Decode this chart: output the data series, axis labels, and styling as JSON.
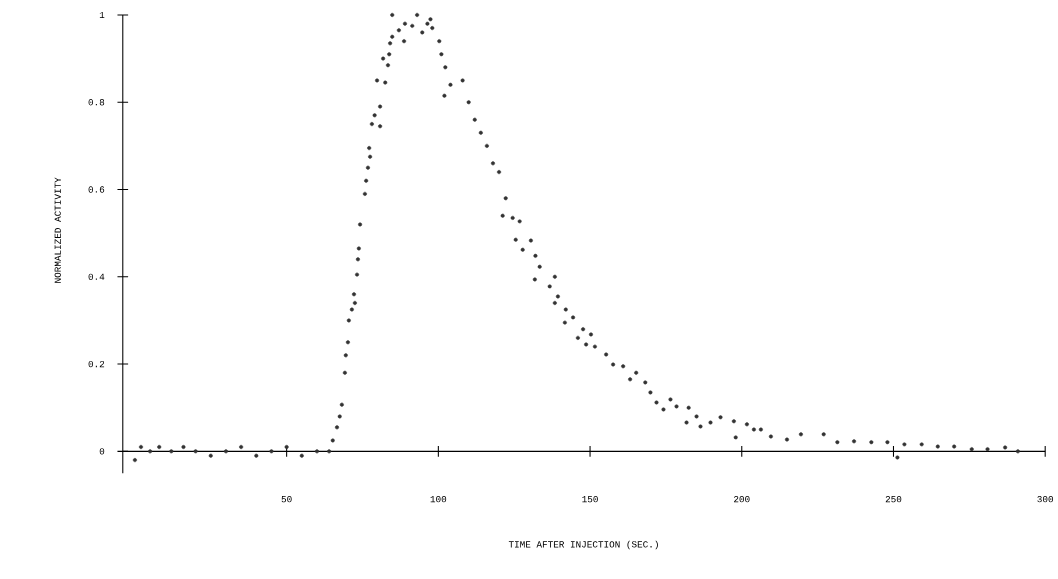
{
  "chart_data": {
    "type": "scatter",
    "xlabel": "TIME AFTER INJECTION (SEC.)",
    "ylabel": "NORMALIZED ACTIVITY",
    "marker": "circle",
    "color": "#333333",
    "x": [
      0,
      2,
      5,
      8,
      12,
      16,
      20,
      25,
      30,
      35,
      40,
      45,
      50,
      55,
      60,
      64,
      65.2,
      66.6,
      67.5,
      68.2,
      69.2,
      69.5,
      70.2,
      70.5,
      71.5,
      72.5,
      72.2,
      73.2,
      73.5,
      73.8,
      74.2,
      75.8,
      76.2,
      76.8,
      77.5,
      77.2,
      78.1,
      79,
      80.8,
      80.8,
      79.8,
      82.5,
      81.8,
      83.4,
      83.8,
      84.1,
      84.8,
      84.8,
      88.7,
      87,
      89,
      91.4,
      93,
      94.7,
      96.4,
      97.4,
      98,
      100.3,
      101,
      102.3,
      102,
      104,
      108,
      110,
      112,
      114,
      116,
      118,
      120,
      122.2,
      121.2,
      124.5,
      126.8,
      125.5,
      130.5,
      127.8,
      132,
      133.4,
      131.8,
      138.4,
      136.7,
      139.4,
      138.4,
      142,
      141.7,
      144.4,
      147.7,
      146,
      150.3,
      151.6,
      148.7,
      155.3,
      157.6,
      160.9,
      163.2,
      165.2,
      168.2,
      169.9,
      171.9,
      176.5,
      174.2,
      178.5,
      182.5,
      181.8,
      185.1,
      186.4,
      189.7,
      193,
      197.4,
      198,
      201.7,
      206.3,
      209.6,
      214.9,
      219.5,
      204,
      227,
      231.5,
      237,
      242.7,
      248,
      251.3,
      253.6,
      259.3,
      264.6,
      270,
      275.8,
      281,
      286.8,
      291
    ],
    "values": [
      -0.02,
      0.01,
      0.0,
      0.01,
      0.0,
      0.01,
      0.0,
      -0.01,
      0.0,
      0.01,
      -0.01,
      0.0,
      0.01,
      -0.01,
      0.0,
      0.0,
      0.025,
      0.055,
      0.08,
      0.107,
      0.18,
      0.22,
      0.25,
      0.3,
      0.325,
      0.34,
      0.36,
      0.405,
      0.44,
      0.465,
      0.52,
      0.59,
      0.62,
      0.65,
      0.675,
      0.695,
      0.75,
      0.77,
      0.79,
      0.745,
      0.85,
      0.845,
      0.9,
      0.885,
      0.91,
      0.935,
      0.95,
      1.0,
      0.94,
      0.965,
      0.98,
      0.975,
      1.0,
      0.96,
      0.98,
      0.99,
      0.97,
      0.94,
      0.91,
      0.88,
      0.815,
      0.84,
      0.85,
      0.8,
      0.76,
      0.73,
      0.7,
      0.66,
      0.64,
      0.58,
      0.54,
      0.535,
      0.527,
      0.485,
      0.483,
      0.462,
      0.448,
      0.423,
      0.394,
      0.4,
      0.378,
      0.355,
      0.34,
      0.325,
      0.295,
      0.307,
      0.28,
      0.26,
      0.268,
      0.24,
      0.245,
      0.222,
      0.199,
      0.195,
      0.165,
      0.18,
      0.158,
      0.135,
      0.112,
      0.119,
      0.096,
      0.103,
      0.1,
      0.066,
      0.08,
      0.057,
      0.066,
      0.078,
      0.069,
      0.032,
      0.062,
      0.05,
      0.034,
      0.027,
      0.039,
      0.05,
      0.039,
      0.021,
      0.023,
      0.021,
      0.021,
      -0.014,
      0.016,
      0.016,
      0.011,
      0.011,
      0.005,
      0.005,
      0.009,
      0.0
    ],
    "xlim": [
      -4,
      300
    ],
    "ylim": [
      -0.05,
      1
    ],
    "xticks": [
      50,
      100,
      150,
      200,
      250,
      300
    ],
    "yticks": [
      0,
      0.2,
      0.4,
      0.6,
      0.8,
      1
    ]
  }
}
